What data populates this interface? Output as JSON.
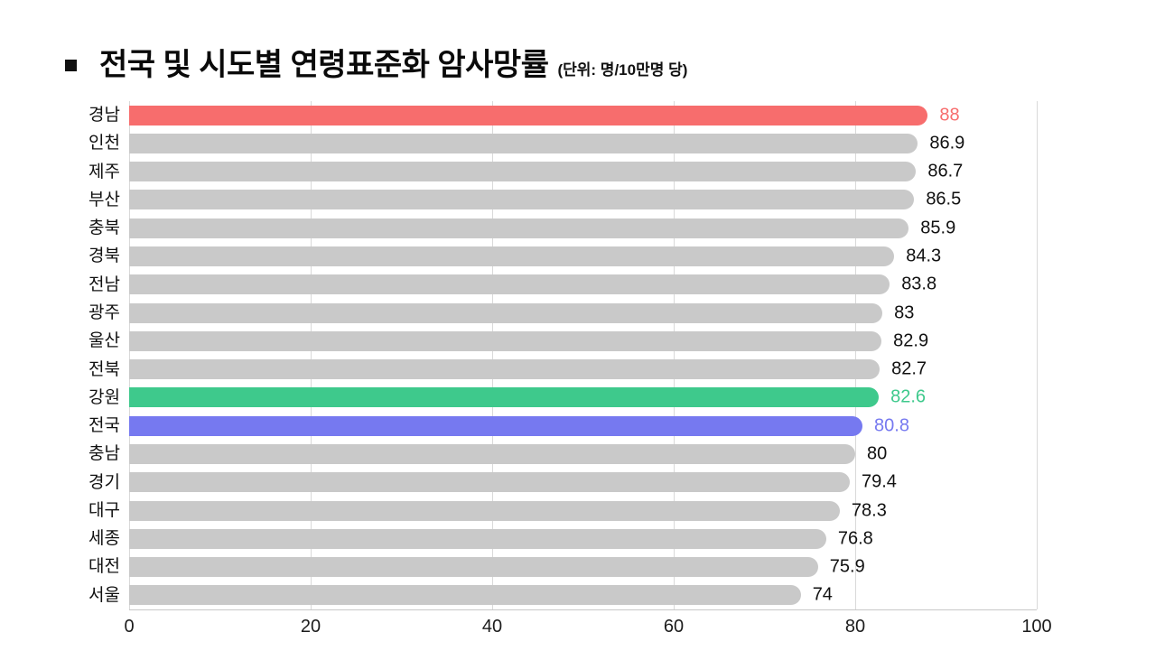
{
  "header": {
    "title": "전국 및 시도별 연령표준화 암사망률",
    "unit": "(단위: 명/10만명 당)"
  },
  "colors": {
    "default_bar": "#c9c9c9",
    "highlight_red": "#f76d6d",
    "highlight_green": "#3ec98c",
    "highlight_blue": "#7679f0",
    "gridline": "#d9d9d9",
    "axis": "#c8c8c8",
    "value_label_default": "#111111"
  },
  "chart_data": {
    "type": "bar",
    "orientation": "horizontal",
    "title": "전국 및 시도별 연령표준화 암사망률",
    "xlabel": "",
    "ylabel": "",
    "unit_label": "(단위: 명/10만명 당)",
    "xlim": [
      0,
      100
    ],
    "xticks": [
      "0",
      "20",
      "40",
      "60",
      "80",
      "100"
    ],
    "xtick_values": [
      0,
      20,
      40,
      60,
      80,
      100
    ],
    "grid": "vertical",
    "legend": "none",
    "categories": [
      "경남",
      "인천",
      "제주",
      "부산",
      "충북",
      "경북",
      "전남",
      "광주",
      "울산",
      "전북",
      "강원",
      "전국",
      "충남",
      "경기",
      "대구",
      "세종",
      "대전",
      "서울"
    ],
    "values": [
      88,
      86.9,
      86.7,
      86.5,
      85.9,
      84.3,
      83.8,
      83,
      82.9,
      82.7,
      82.6,
      80.8,
      80,
      79.4,
      78.3,
      76.8,
      75.9,
      74
    ],
    "value_labels": [
      "88",
      "86.9",
      "86.7",
      "86.5",
      "85.9",
      "84.3",
      "83.8",
      "83",
      "82.9",
      "82.7",
      "82.6",
      "80.8",
      "80",
      "79.4",
      "78.3",
      "76.8",
      "75.9",
      "74"
    ],
    "bar_colors": [
      "#f76d6d",
      "#c9c9c9",
      "#c9c9c9",
      "#c9c9c9",
      "#c9c9c9",
      "#c9c9c9",
      "#c9c9c9",
      "#c9c9c9",
      "#c9c9c9",
      "#c9c9c9",
      "#3ec98c",
      "#7679f0",
      "#c9c9c9",
      "#c9c9c9",
      "#c9c9c9",
      "#c9c9c9",
      "#c9c9c9",
      "#c9c9c9"
    ],
    "value_label_colors": [
      "#f76d6d",
      "#111111",
      "#111111",
      "#111111",
      "#111111",
      "#111111",
      "#111111",
      "#111111",
      "#111111",
      "#111111",
      "#3ec98c",
      "#7679f0",
      "#111111",
      "#111111",
      "#111111",
      "#111111",
      "#111111",
      "#111111"
    ]
  }
}
